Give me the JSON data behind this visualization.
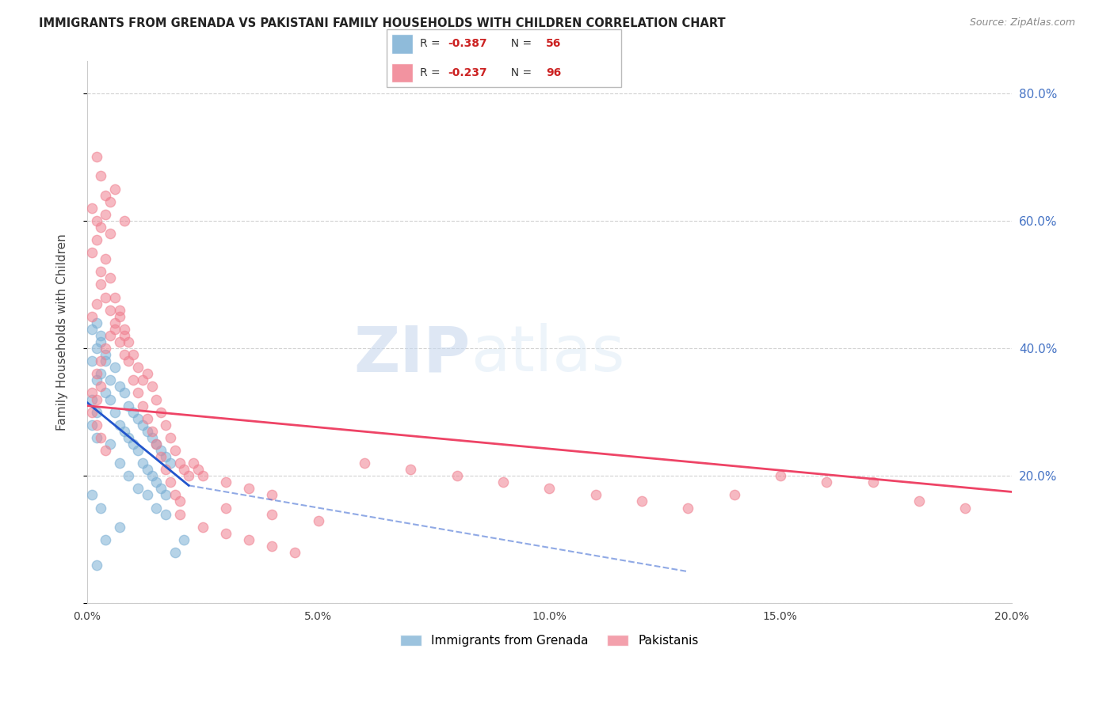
{
  "title": "IMMIGRANTS FROM GRENADA VS PAKISTANI FAMILY HOUSEHOLDS WITH CHILDREN CORRELATION CHART",
  "source": "Source: ZipAtlas.com",
  "ylabel": "Family Households with Children",
  "watermark_zip": "ZIP",
  "watermark_atlas": "atlas",
  "xmin": 0.0,
  "xmax": 0.2,
  "ymin": 0.0,
  "ymax": 0.85,
  "yticks": [
    0.0,
    0.2,
    0.4,
    0.6,
    0.8
  ],
  "ytick_labels": [
    "",
    "20.0%",
    "40.0%",
    "60.0%",
    "80.0%"
  ],
  "xticks": [
    0.0,
    0.05,
    0.1,
    0.15,
    0.2
  ],
  "xtick_labels": [
    "0.0%",
    "5.0%",
    "10.0%",
    "15.0%",
    "20.0%"
  ],
  "right_axis_color": "#4472c4",
  "grid_color": "#cccccc",
  "background_color": "#ffffff",
  "blue_scatter": [
    [
      0.002,
      0.3
    ],
    [
      0.001,
      0.38
    ],
    [
      0.002,
      0.35
    ],
    [
      0.001,
      0.32
    ],
    [
      0.003,
      0.42
    ],
    [
      0.002,
      0.4
    ],
    [
      0.004,
      0.38
    ],
    [
      0.003,
      0.36
    ],
    [
      0.005,
      0.35
    ],
    [
      0.004,
      0.33
    ],
    [
      0.006,
      0.37
    ],
    [
      0.005,
      0.32
    ],
    [
      0.007,
      0.34
    ],
    [
      0.006,
      0.3
    ],
    [
      0.008,
      0.33
    ],
    [
      0.007,
      0.28
    ],
    [
      0.009,
      0.31
    ],
    [
      0.008,
      0.27
    ],
    [
      0.01,
      0.3
    ],
    [
      0.009,
      0.26
    ],
    [
      0.011,
      0.29
    ],
    [
      0.01,
      0.25
    ],
    [
      0.012,
      0.28
    ],
    [
      0.011,
      0.24
    ],
    [
      0.013,
      0.27
    ],
    [
      0.012,
      0.22
    ],
    [
      0.014,
      0.26
    ],
    [
      0.013,
      0.21
    ],
    [
      0.015,
      0.25
    ],
    [
      0.014,
      0.2
    ],
    [
      0.016,
      0.24
    ],
    [
      0.015,
      0.19
    ],
    [
      0.017,
      0.23
    ],
    [
      0.016,
      0.18
    ],
    [
      0.018,
      0.22
    ],
    [
      0.017,
      0.17
    ],
    [
      0.001,
      0.43
    ],
    [
      0.002,
      0.44
    ],
    [
      0.003,
      0.41
    ],
    [
      0.004,
      0.39
    ],
    [
      0.001,
      0.28
    ],
    [
      0.002,
      0.26
    ],
    [
      0.001,
      0.17
    ],
    [
      0.003,
      0.15
    ],
    [
      0.005,
      0.25
    ],
    [
      0.007,
      0.22
    ],
    [
      0.009,
      0.2
    ],
    [
      0.011,
      0.18
    ],
    [
      0.013,
      0.17
    ],
    [
      0.015,
      0.15
    ],
    [
      0.017,
      0.14
    ],
    [
      0.019,
      0.08
    ],
    [
      0.021,
      0.1
    ],
    [
      0.007,
      0.12
    ],
    [
      0.004,
      0.1
    ],
    [
      0.002,
      0.06
    ]
  ],
  "pink_scatter": [
    [
      0.001,
      0.33
    ],
    [
      0.002,
      0.36
    ],
    [
      0.003,
      0.38
    ],
    [
      0.004,
      0.4
    ],
    [
      0.005,
      0.42
    ],
    [
      0.006,
      0.44
    ],
    [
      0.007,
      0.46
    ],
    [
      0.008,
      0.43
    ],
    [
      0.009,
      0.41
    ],
    [
      0.01,
      0.39
    ],
    [
      0.011,
      0.37
    ],
    [
      0.012,
      0.35
    ],
    [
      0.013,
      0.36
    ],
    [
      0.014,
      0.34
    ],
    [
      0.015,
      0.32
    ],
    [
      0.016,
      0.3
    ],
    [
      0.017,
      0.28
    ],
    [
      0.018,
      0.26
    ],
    [
      0.019,
      0.24
    ],
    [
      0.02,
      0.22
    ],
    [
      0.021,
      0.21
    ],
    [
      0.022,
      0.2
    ],
    [
      0.023,
      0.22
    ],
    [
      0.024,
      0.21
    ],
    [
      0.025,
      0.2
    ],
    [
      0.03,
      0.19
    ],
    [
      0.035,
      0.18
    ],
    [
      0.04,
      0.17
    ],
    [
      0.001,
      0.45
    ],
    [
      0.002,
      0.47
    ],
    [
      0.003,
      0.5
    ],
    [
      0.004,
      0.48
    ],
    [
      0.005,
      0.46
    ],
    [
      0.006,
      0.43
    ],
    [
      0.007,
      0.41
    ],
    [
      0.008,
      0.39
    ],
    [
      0.001,
      0.55
    ],
    [
      0.002,
      0.57
    ],
    [
      0.003,
      0.59
    ],
    [
      0.004,
      0.61
    ],
    [
      0.005,
      0.63
    ],
    [
      0.006,
      0.65
    ],
    [
      0.008,
      0.6
    ],
    [
      0.002,
      0.7
    ],
    [
      0.003,
      0.67
    ],
    [
      0.004,
      0.64
    ],
    [
      0.001,
      0.62
    ],
    [
      0.002,
      0.6
    ],
    [
      0.005,
      0.58
    ],
    [
      0.003,
      0.52
    ],
    [
      0.004,
      0.54
    ],
    [
      0.005,
      0.51
    ],
    [
      0.006,
      0.48
    ],
    [
      0.007,
      0.45
    ],
    [
      0.008,
      0.42
    ],
    [
      0.009,
      0.38
    ],
    [
      0.01,
      0.35
    ],
    [
      0.011,
      0.33
    ],
    [
      0.012,
      0.31
    ],
    [
      0.013,
      0.29
    ],
    [
      0.014,
      0.27
    ],
    [
      0.015,
      0.25
    ],
    [
      0.016,
      0.23
    ],
    [
      0.017,
      0.21
    ],
    [
      0.018,
      0.19
    ],
    [
      0.019,
      0.17
    ],
    [
      0.02,
      0.16
    ],
    [
      0.03,
      0.15
    ],
    [
      0.04,
      0.14
    ],
    [
      0.05,
      0.13
    ],
    [
      0.06,
      0.22
    ],
    [
      0.07,
      0.21
    ],
    [
      0.08,
      0.2
    ],
    [
      0.09,
      0.19
    ],
    [
      0.1,
      0.18
    ],
    [
      0.11,
      0.17
    ],
    [
      0.12,
      0.16
    ],
    [
      0.13,
      0.15
    ],
    [
      0.14,
      0.17
    ],
    [
      0.15,
      0.2
    ],
    [
      0.16,
      0.19
    ],
    [
      0.17,
      0.19
    ],
    [
      0.18,
      0.16
    ],
    [
      0.19,
      0.15
    ],
    [
      0.02,
      0.14
    ],
    [
      0.025,
      0.12
    ],
    [
      0.03,
      0.11
    ],
    [
      0.035,
      0.1
    ],
    [
      0.04,
      0.09
    ],
    [
      0.045,
      0.08
    ],
    [
      0.001,
      0.3
    ],
    [
      0.002,
      0.28
    ],
    [
      0.003,
      0.26
    ],
    [
      0.004,
      0.24
    ],
    [
      0.002,
      0.32
    ],
    [
      0.003,
      0.34
    ]
  ],
  "blue_line": {
    "x0": 0.0,
    "y0": 0.315,
    "x1": 0.022,
    "y1": 0.185
  },
  "blue_line_dashed": {
    "x0": 0.022,
    "y0": 0.185,
    "x1": 0.13,
    "y1": 0.05
  },
  "pink_line": {
    "x0": 0.0,
    "y0": 0.31,
    "x1": 0.2,
    "y1": 0.175
  },
  "blue_scatter_color": "#7bafd4",
  "pink_scatter_color": "#f08090",
  "blue_line_color": "#2255cc",
  "pink_line_color": "#ee4466",
  "blue_scatter_alpha": 0.55,
  "pink_scatter_alpha": 0.55,
  "scatter_size": 80,
  "legend_box_r1": "-0.387",
  "legend_box_n1": "56",
  "legend_box_r2": "-0.237",
  "legend_box_n2": "96",
  "legend_r_color": "#cc2222",
  "legend_n_color": "#cc2222",
  "legend_text_color": "#333333",
  "bottom_legend_items": [
    "Immigrants from Grenada",
    "Pakistanis"
  ]
}
